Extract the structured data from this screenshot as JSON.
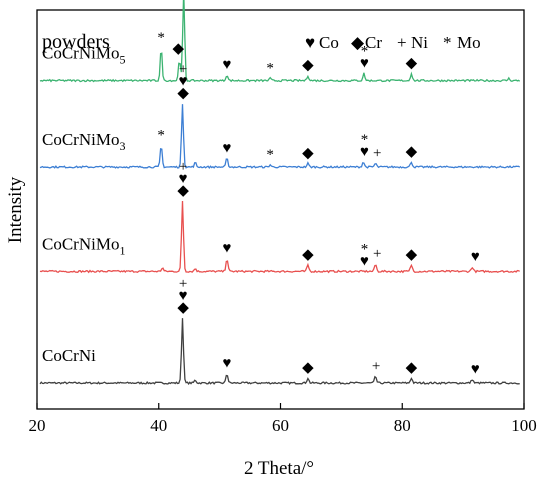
{
  "chart_data": {
    "type": "line",
    "xlabel": "2 Theta/°",
    "ylabel": "Intensity",
    "xlim": [
      20,
      100
    ],
    "xticks": [
      "20",
      "40",
      "60",
      "80",
      "100"
    ],
    "y_tick_labels": "none",
    "grid": false,
    "panel_label": "powders",
    "legend": {
      "placement": "top-right",
      "entries": [
        {
          "symbol": "♥",
          "label": "Co"
        },
        {
          "symbol": "◆",
          "label": "Cr"
        },
        {
          "symbol": "+",
          "label": "Ni"
        },
        {
          "symbol": "*",
          "label": "Mo"
        }
      ]
    },
    "series": [
      {
        "name": "CoCrNi",
        "color": "#404040",
        "baseline": 0.0,
        "peaks": [
          [
            43.9,
            0.9
          ],
          [
            51.2,
            0.13
          ],
          [
            64.5,
            0.07
          ],
          [
            75.6,
            0.09
          ],
          [
            81.5,
            0.07
          ],
          [
            91.5,
            0.05
          ],
          [
            46.0,
            0.04
          ]
        ],
        "markers": [
          {
            "x": 44.0,
            "symbols": [
              "+",
              "♥",
              "◆"
            ]
          },
          {
            "x": 51.2,
            "symbols": [
              "♥"
            ]
          },
          {
            "x": 64.5,
            "symbols": [
              "◆"
            ]
          },
          {
            "x": 75.7,
            "symbols": [
              "+"
            ]
          },
          {
            "x": 81.5,
            "symbols": [
              "◆"
            ]
          },
          {
            "x": 92.0,
            "symbols": [
              "♥"
            ]
          }
        ]
      },
      {
        "name": "CoCrNiMo",
        "subscript": "1",
        "color": "#e8504f",
        "baseline": 1.55,
        "peaks": [
          [
            43.9,
            0.98
          ],
          [
            51.2,
            0.18
          ],
          [
            64.5,
            0.09
          ],
          [
            40.6,
            0.05
          ],
          [
            75.6,
            0.1
          ],
          [
            81.5,
            0.09
          ],
          [
            91.5,
            0.06
          ],
          [
            46.0,
            0.04
          ]
        ],
        "markers": [
          {
            "x": 44.0,
            "symbols": [
              "+",
              "♥",
              "◆"
            ]
          },
          {
            "x": 51.2,
            "symbols": [
              "♥"
            ]
          },
          {
            "x": 64.5,
            "symbols": [
              "◆"
            ]
          },
          {
            "x": 73.8,
            "symbols": [
              "*",
              "♥"
            ]
          },
          {
            "x": 75.9,
            "symbols": [
              "+"
            ]
          },
          {
            "x": 81.5,
            "symbols": [
              "◆"
            ]
          },
          {
            "x": 92.0,
            "symbols": [
              "♥"
            ]
          }
        ]
      },
      {
        "name": "CoCrNiMo",
        "subscript": "3",
        "color": "#3d7fd4",
        "baseline": 3.0,
        "peaks": [
          [
            43.9,
            0.88
          ],
          [
            40.4,
            0.3
          ],
          [
            51.2,
            0.12
          ],
          [
            58.3,
            0.03
          ],
          [
            64.5,
            0.05
          ],
          [
            73.6,
            0.07
          ],
          [
            75.6,
            0.05
          ],
          [
            81.5,
            0.07
          ],
          [
            46.0,
            0.06
          ]
        ],
        "markers": [
          {
            "x": 40.4,
            "symbols": [
              "*"
            ]
          },
          {
            "x": 44.0,
            "symbols": [
              "+",
              "♥",
              "◆"
            ]
          },
          {
            "x": 51.2,
            "symbols": [
              "♥"
            ]
          },
          {
            "x": 58.3,
            "symbols": [
              "*"
            ]
          },
          {
            "x": 64.5,
            "symbols": [
              "◆"
            ]
          },
          {
            "x": 73.8,
            "symbols": [
              "*",
              "♥"
            ]
          },
          {
            "x": 75.9,
            "symbols": [
              "+"
            ]
          },
          {
            "x": 81.5,
            "symbols": [
              "◆"
            ]
          }
        ]
      },
      {
        "name": "CoCrNiMo",
        "subscript": "5",
        "color": "#3cb371",
        "baseline": 4.2,
        "peaks": [
          [
            44.1,
            1.25
          ],
          [
            40.4,
            0.45
          ],
          [
            43.4,
            0.3
          ],
          [
            51.2,
            0.08
          ],
          [
            58.3,
            0.03
          ],
          [
            64.5,
            0.07
          ],
          [
            73.7,
            0.1
          ],
          [
            81.5,
            0.1
          ],
          [
            97.5,
            0.03
          ]
        ],
        "markers": [
          {
            "x": 40.4,
            "symbols": [
              "*"
            ]
          },
          {
            "x": 43.2,
            "symbols": [
              "◆"
            ]
          },
          {
            "x": 44.1,
            "symbols": [
              "+",
              "♥",
              "◆"
            ]
          },
          {
            "x": 51.2,
            "symbols": [
              "♥"
            ]
          },
          {
            "x": 58.3,
            "symbols": [
              "*"
            ]
          },
          {
            "x": 64.5,
            "symbols": [
              "◆"
            ]
          },
          {
            "x": 73.8,
            "symbols": [
              "*",
              "♥"
            ]
          },
          {
            "x": 81.5,
            "symbols": [
              "◆"
            ]
          }
        ]
      }
    ]
  }
}
